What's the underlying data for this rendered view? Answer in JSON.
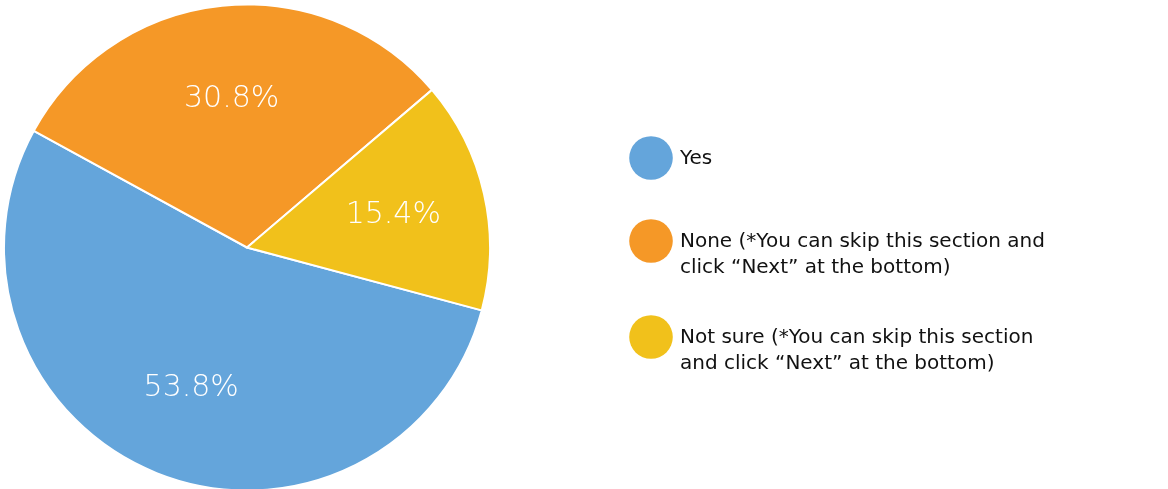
{
  "chart_data": {
    "type": "pie",
    "categories": [
      "Yes",
      "None (*You can skip this section and click “Next” at the bottom)",
      "Not sure (*You can skip this section and click “Next” at the bottom)"
    ],
    "values": [
      53.8,
      30.8,
      15.4
    ],
    "colors": [
      "#64a5db",
      "#f59827",
      "#f1c11b"
    ],
    "value_labels": [
      "53.8%",
      "30.8%",
      "15.4%"
    ],
    "legend": "right"
  }
}
